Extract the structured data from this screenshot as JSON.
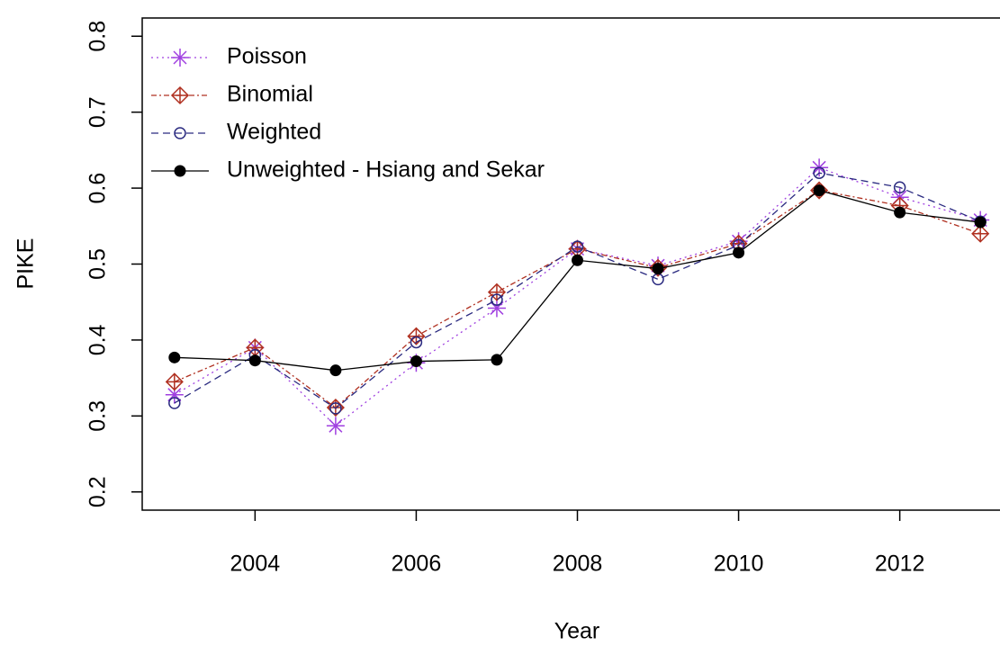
{
  "chart_data": {
    "type": "line",
    "x_label": "Year",
    "y_label": "PIKE",
    "x": [
      2003,
      2004,
      2005,
      2006,
      2007,
      2008,
      2009,
      2010,
      2011,
      2012,
      2013
    ],
    "xlim": [
      2002.6,
      2013.4
    ],
    "xticks": [
      2004,
      2006,
      2008,
      2010,
      2012
    ],
    "ylim": [
      0.176,
      0.824
    ],
    "yticks": [
      0.2,
      0.3,
      0.4,
      0.5,
      0.6,
      0.7,
      0.8
    ],
    "legend": "top-left",
    "series": [
      {
        "name": "Poisson",
        "color": "#a040e0",
        "marker": "star",
        "dash": "2,4",
        "values": [
          0.328,
          0.39,
          0.287,
          0.37,
          0.442,
          0.52,
          0.498,
          0.53,
          0.627,
          0.588,
          0.558
        ]
      },
      {
        "name": "Binomial",
        "color": "#b03020",
        "marker": "diamond-plus",
        "dash": "6,3,2,3",
        "values": [
          0.345,
          0.39,
          0.311,
          0.405,
          0.463,
          0.52,
          0.495,
          0.527,
          0.597,
          0.577,
          0.54
        ]
      },
      {
        "name": "Weighted",
        "color": "#2a2a80",
        "marker": "circle",
        "dash": "8,5",
        "values": [
          0.317,
          0.38,
          0.31,
          0.397,
          0.453,
          0.523,
          0.48,
          0.525,
          0.62,
          0.601,
          0.556
        ]
      },
      {
        "name": "Unweighted - Hsiang and Sekar",
        "color": "#000000",
        "marker": "dot",
        "dash": "",
        "values": [
          0.377,
          0.373,
          0.36,
          0.372,
          0.374,
          0.505,
          0.494,
          0.515,
          0.597,
          0.568,
          0.555
        ]
      }
    ]
  }
}
